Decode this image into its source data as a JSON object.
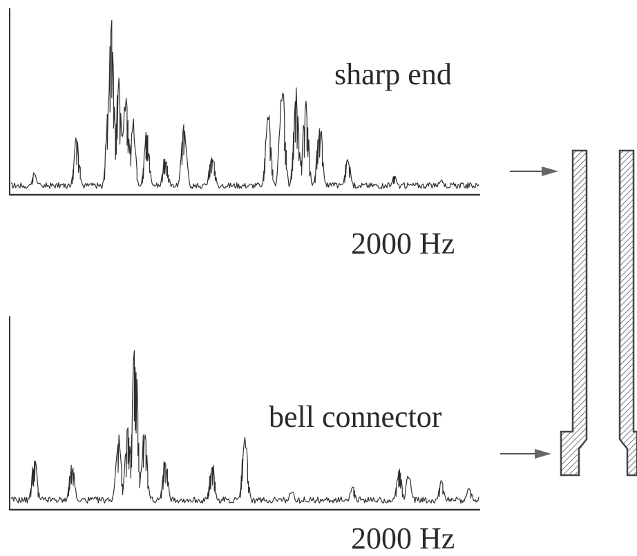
{
  "spectra": [
    {
      "name": "sharp end",
      "freq_max_label": "2000 Hz",
      "peaks": [
        {
          "f": 0.05,
          "a": 0.12
        },
        {
          "f": 0.14,
          "a": 0.35
        },
        {
          "f": 0.21,
          "a": 0.65
        },
        {
          "f": 0.215,
          "a": 1.0
        },
        {
          "f": 0.23,
          "a": 0.72
        },
        {
          "f": 0.245,
          "a": 0.62
        },
        {
          "f": 0.26,
          "a": 0.45
        },
        {
          "f": 0.29,
          "a": 0.36
        },
        {
          "f": 0.33,
          "a": 0.22
        },
        {
          "f": 0.37,
          "a": 0.42
        },
        {
          "f": 0.43,
          "a": 0.25
        },
        {
          "f": 0.55,
          "a": 0.48
        },
        {
          "f": 0.58,
          "a": 0.68
        },
        {
          "f": 0.61,
          "a": 0.62
        },
        {
          "f": 0.63,
          "a": 0.55
        },
        {
          "f": 0.66,
          "a": 0.42
        },
        {
          "f": 0.72,
          "a": 0.22
        },
        {
          "f": 0.82,
          "a": 0.1
        },
        {
          "f": 0.92,
          "a": 0.08
        }
      ]
    },
    {
      "name": "bell connector",
      "freq_max_label": "2000 Hz",
      "peaks": [
        {
          "f": 0.05,
          "a": 0.28
        },
        {
          "f": 0.13,
          "a": 0.25
        },
        {
          "f": 0.23,
          "a": 0.4
        },
        {
          "f": 0.25,
          "a": 0.46
        },
        {
          "f": 0.265,
          "a": 1.0
        },
        {
          "f": 0.285,
          "a": 0.45
        },
        {
          "f": 0.33,
          "a": 0.28
        },
        {
          "f": 0.43,
          "a": 0.25
        },
        {
          "f": 0.5,
          "a": 0.42
        },
        {
          "f": 0.6,
          "a": 0.1
        },
        {
          "f": 0.73,
          "a": 0.12
        },
        {
          "f": 0.83,
          "a": 0.22
        },
        {
          "f": 0.85,
          "a": 0.18
        },
        {
          "f": 0.92,
          "a": 0.16
        },
        {
          "f": 0.98,
          "a": 0.12
        }
      ]
    }
  ]
}
